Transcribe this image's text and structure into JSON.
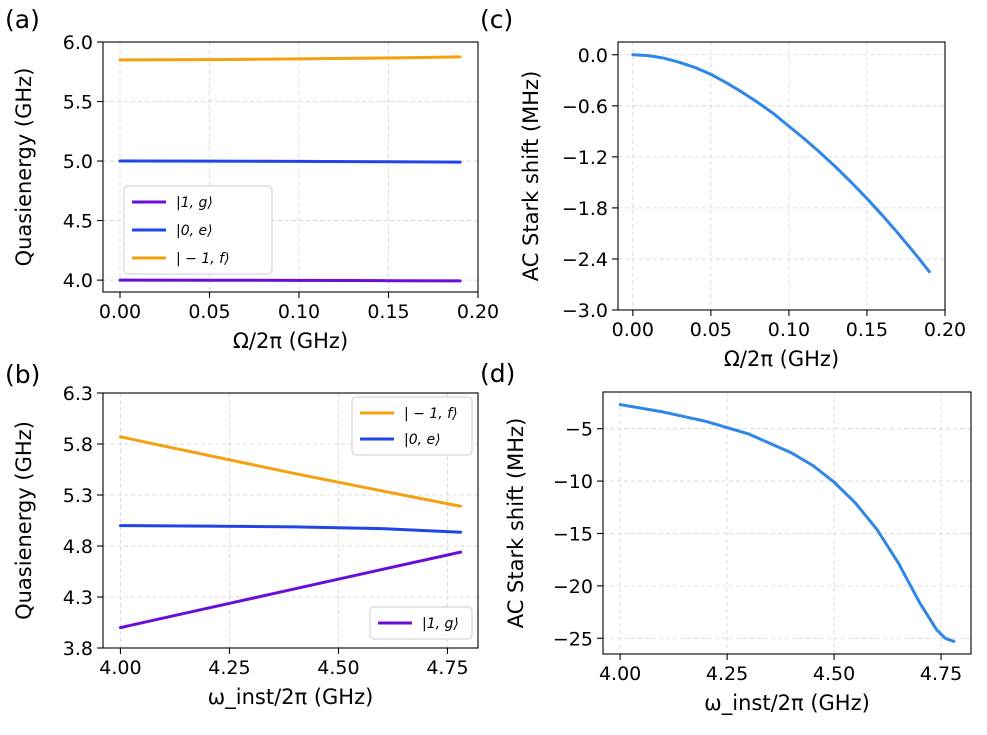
{
  "colors": {
    "state_1g": "#6a0dd6",
    "state_0e": "#1f46e6",
    "state_m1f": "#f5a00f",
    "stark": "#2e86e6"
  },
  "chart_data": [
    {
      "id": "a",
      "panel_label": "(a)",
      "type": "line",
      "xlabel": "Ω/2π (GHz)",
      "ylabel": "Quasienergy (GHz)",
      "xlim": [
        -0.0095,
        0.2
      ],
      "ylim": [
        3.9,
        6.0
      ],
      "xticks": [
        "0.00",
        "0.05",
        "0.10",
        "0.15",
        "0.20"
      ],
      "yticks": [
        "4.0",
        "4.5",
        "5.0",
        "5.5",
        "6.0"
      ],
      "grid": true,
      "legend_position": "center-left",
      "series": [
        {
          "name": "|1, g⟩",
          "color": "#6a0dd6",
          "x": [
            0.0,
            0.05,
            0.1,
            0.15,
            0.19
          ],
          "values": [
            4.0,
            3.999,
            3.998,
            3.995,
            3.993
          ]
        },
        {
          "name": "|0, e⟩",
          "color": "#1f46e6",
          "x": [
            0.0,
            0.05,
            0.1,
            0.15,
            0.19
          ],
          "values": [
            5.0,
            4.999,
            4.997,
            4.994,
            4.991
          ]
        },
        {
          "name": "| − 1, f⟩",
          "color": "#f5a00f",
          "x": [
            0.0,
            0.05,
            0.1,
            0.15,
            0.19
          ],
          "values": [
            5.85,
            5.852,
            5.858,
            5.866,
            5.875
          ]
        }
      ]
    },
    {
      "id": "b",
      "panel_label": "(b)",
      "type": "line",
      "xlabel": "ω_inst/2π (GHz)",
      "ylabel": "Quasienergy (GHz)",
      "xlim": [
        3.96,
        4.82
      ],
      "ylim": [
        3.8,
        6.3
      ],
      "xticks": [
        "4.00",
        "4.25",
        "4.50",
        "4.75"
      ],
      "yticks": [
        "3.8",
        "4.3",
        "4.8",
        "5.3",
        "5.8",
        "6.3"
      ],
      "grid": true,
      "legend_position": "upper-right and lower-right",
      "series": [
        {
          "name": "| − 1, f⟩",
          "color": "#f5a00f",
          "x": [
            4.0,
            4.2,
            4.4,
            4.6,
            4.78
          ],
          "values": [
            5.87,
            5.69,
            5.51,
            5.34,
            5.19
          ]
        },
        {
          "name": "|0, e⟩",
          "color": "#1f46e6",
          "x": [
            4.0,
            4.2,
            4.4,
            4.6,
            4.78
          ],
          "values": [
            5.0,
            4.995,
            4.987,
            4.97,
            4.935
          ]
        },
        {
          "name": "|1, g⟩",
          "color": "#6a0dd6",
          "x": [
            4.0,
            4.2,
            4.4,
            4.6,
            4.78
          ],
          "values": [
            4.0,
            4.19,
            4.38,
            4.57,
            4.74
          ]
        }
      ]
    },
    {
      "id": "c",
      "panel_label": "(c)",
      "type": "line",
      "xlabel": "Ω/2π (GHz)",
      "ylabel": "AC Stark shift (MHz)",
      "xlim": [
        -0.0095,
        0.2
      ],
      "ylim": [
        -3.0,
        0.15
      ],
      "xticks": [
        "0.00",
        "0.05",
        "0.10",
        "0.15",
        "0.20"
      ],
      "yticks": [
        "0.0",
        "−0.6",
        "−1.2",
        "−1.8",
        "−2.4",
        "−3.0"
      ],
      "grid": true,
      "series": [
        {
          "color": "#2e86e6",
          "x": [
            0.0,
            0.01,
            0.02,
            0.03,
            0.04,
            0.05,
            0.06,
            0.07,
            0.08,
            0.09,
            0.1,
            0.11,
            0.12,
            0.13,
            0.14,
            0.15,
            0.16,
            0.17,
            0.18,
            0.19
          ],
          "values": [
            0.0,
            -0.01,
            -0.04,
            -0.09,
            -0.15,
            -0.23,
            -0.33,
            -0.44,
            -0.56,
            -0.69,
            -0.84,
            -0.99,
            -1.15,
            -1.32,
            -1.5,
            -1.69,
            -1.89,
            -2.1,
            -2.32,
            -2.55
          ]
        }
      ]
    },
    {
      "id": "d",
      "panel_label": "(d)",
      "type": "line",
      "xlabel": "ω_inst/2π (GHz)",
      "ylabel": "AC Stark shift (MHz)",
      "xlim": [
        3.96,
        4.82
      ],
      "ylim": [
        -26.5,
        -1.5
      ],
      "xticks": [
        "4.00",
        "4.25",
        "4.50",
        "4.75"
      ],
      "yticks": [
        "−5",
        "−10",
        "−15",
        "−20",
        "−25"
      ],
      "grid": true,
      "series": [
        {
          "color": "#2e86e6",
          "x": [
            4.0,
            4.1,
            4.2,
            4.3,
            4.4,
            4.45,
            4.5,
            4.55,
            4.6,
            4.65,
            4.7,
            4.74,
            4.76,
            4.78
          ],
          "values": [
            -2.7,
            -3.4,
            -4.3,
            -5.5,
            -7.3,
            -8.5,
            -10.1,
            -12.1,
            -14.6,
            -17.8,
            -21.6,
            -24.2,
            -25.0,
            -25.3
          ]
        }
      ]
    }
  ]
}
